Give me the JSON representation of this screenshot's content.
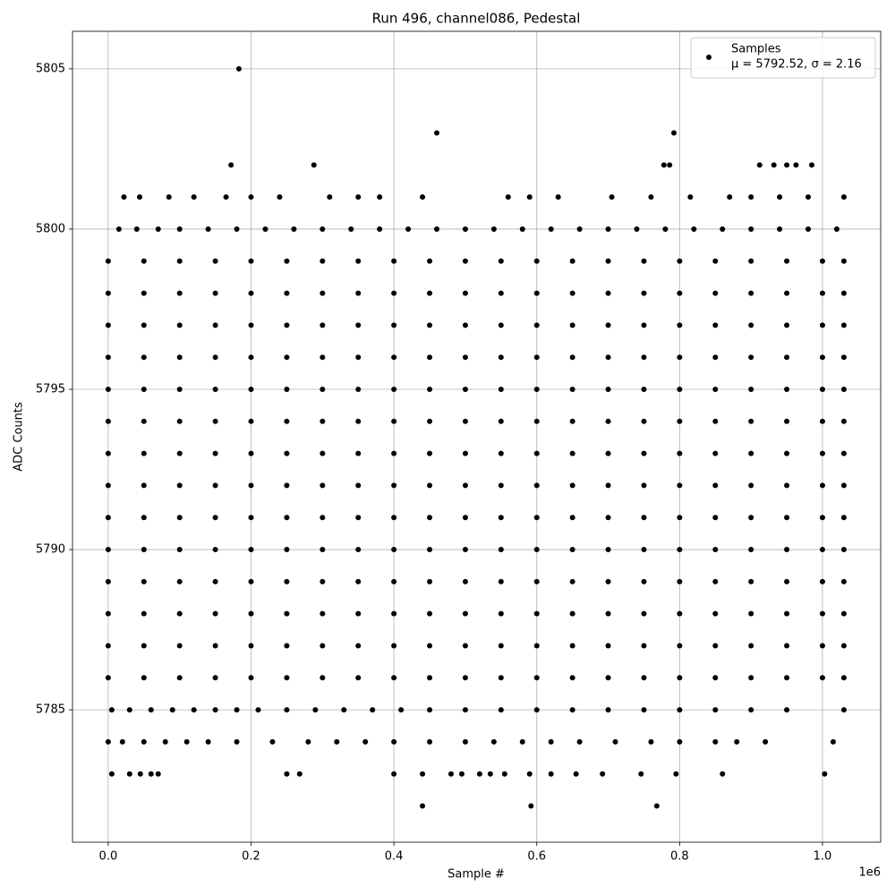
{
  "chart_data": {
    "type": "scatter",
    "title": "Run 496, channel086, Pedestal",
    "x_label": "Sample #",
    "y_label": "ADC Counts",
    "x_offset_label": "1e6",
    "legend_note": "μ = 5792.52, σ = 2.16",
    "legend_position": "upper right",
    "grid": true,
    "xlim": [
      -50000,
      1081500
    ],
    "ylim": [
      5780.87,
      5806.17
    ],
    "xticks": [
      {
        "value": 0,
        "label": "0.0"
      },
      {
        "value": 200000,
        "label": "0.2"
      },
      {
        "value": 400000,
        "label": "0.4"
      },
      {
        "value": 600000,
        "label": "0.6"
      },
      {
        "value": 800000,
        "label": "0.8"
      },
      {
        "value": 1000000,
        "label": "1.0"
      }
    ],
    "yticks": [
      5785,
      5790,
      5795,
      5800,
      5805
    ],
    "series": [
      {
        "name": "Samples",
        "color": "#000000",
        "x": [
          0,
          50000,
          100000,
          150000,
          200000,
          250000,
          300000,
          350000,
          400000,
          450000,
          500000,
          550000,
          600000,
          650000,
          700000,
          750000,
          800000,
          850000,
          900000,
          950000,
          1000000,
          1030000,
          0,
          50000,
          100000,
          150000,
          200000,
          250000,
          300000,
          350000,
          400000,
          450000,
          500000,
          550000,
          600000,
          650000,
          700000,
          750000,
          800000,
          850000,
          900000,
          950000,
          1000000,
          1030000,
          0,
          50000,
          100000,
          150000,
          200000,
          250000,
          300000,
          350000,
          400000,
          450000,
          500000,
          550000,
          600000,
          650000,
          700000,
          750000,
          800000,
          850000,
          900000,
          950000,
          1000000,
          1030000,
          0,
          50000,
          100000,
          150000,
          200000,
          250000,
          300000,
          350000,
          400000,
          450000,
          500000,
          550000,
          600000,
          650000,
          700000,
          750000,
          800000,
          850000,
          900000,
          950000,
          1000000,
          1030000,
          0,
          50000,
          100000,
          150000,
          200000,
          250000,
          300000,
          350000,
          400000,
          450000,
          500000,
          550000,
          600000,
          650000,
          700000,
          750000,
          800000,
          850000,
          900000,
          950000,
          1000000,
          1030000,
          0,
          50000,
          100000,
          150000,
          200000,
          250000,
          300000,
          350000,
          400000,
          450000,
          500000,
          550000,
          600000,
          650000,
          700000,
          750000,
          800000,
          850000,
          900000,
          950000,
          1000000,
          1030000,
          0,
          50000,
          100000,
          150000,
          200000,
          250000,
          300000,
          350000,
          400000,
          450000,
          500000,
          550000,
          600000,
          650000,
          700000,
          750000,
          800000,
          850000,
          900000,
          950000,
          1000000,
          1030000,
          0,
          50000,
          100000,
          150000,
          200000,
          250000,
          300000,
          350000,
          400000,
          450000,
          500000,
          550000,
          600000,
          650000,
          700000,
          750000,
          800000,
          850000,
          900000,
          950000,
          1000000,
          1030000,
          0,
          50000,
          100000,
          150000,
          200000,
          250000,
          300000,
          350000,
          400000,
          450000,
          500000,
          550000,
          600000,
          650000,
          700000,
          750000,
          800000,
          850000,
          900000,
          950000,
          1000000,
          1030000,
          0,
          50000,
          100000,
          150000,
          200000,
          250000,
          300000,
          350000,
          400000,
          450000,
          500000,
          550000,
          600000,
          650000,
          700000,
          750000,
          800000,
          850000,
          900000,
          950000,
          1000000,
          1030000,
          0,
          50000,
          100000,
          150000,
          200000,
          250000,
          300000,
          350000,
          400000,
          450000,
          500000,
          550000,
          600000,
          650000,
          700000,
          750000,
          800000,
          850000,
          900000,
          950000,
          1000000,
          1030000,
          0,
          50000,
          100000,
          150000,
          200000,
          250000,
          300000,
          350000,
          400000,
          450000,
          500000,
          550000,
          600000,
          650000,
          700000,
          750000,
          800000,
          850000,
          900000,
          950000,
          1000000,
          1030000,
          0,
          50000,
          100000,
          150000,
          200000,
          250000,
          300000,
          350000,
          400000,
          450000,
          500000,
          550000,
          600000,
          650000,
          700000,
          750000,
          800000,
          850000,
          900000,
          950000,
          1000000,
          1030000,
          0,
          50000,
          100000,
          150000,
          200000,
          250000,
          300000,
          350000,
          400000,
          450000,
          500000,
          550000,
          600000,
          650000,
          700000,
          750000,
          800000,
          850000,
          900000,
          950000,
          1000000,
          1030000,
          5000,
          30000,
          60000,
          90000,
          120000,
          150000,
          180000,
          210000,
          250000,
          290000,
          330000,
          370000,
          410000,
          450000,
          500000,
          550000,
          600000,
          650000,
          700000,
          750000,
          800000,
          850000,
          900000,
          950000,
          1030000,
          0,
          20000,
          50000,
          80000,
          110000,
          140000,
          180000,
          230000,
          280000,
          320000,
          360000,
          400000,
          450000,
          500000,
          540000,
          580000,
          620000,
          660000,
          710000,
          760000,
          800000,
          850000,
          880000,
          920000,
          1015000,
          15000,
          40000,
          70000,
          100000,
          140000,
          180000,
          220000,
          260000,
          300000,
          340000,
          380000,
          420000,
          460000,
          500000,
          540000,
          580000,
          620000,
          660000,
          700000,
          740000,
          780000,
          820000,
          860000,
          900000,
          940000,
          980000,
          1020000,
          22000,
          44000,
          85000,
          120000,
          165000,
          200000,
          240000,
          310000,
          350000,
          380000,
          440000,
          560000,
          590000,
          630000,
          705000,
          760000,
          815000,
          870000,
          900000,
          940000,
          980000,
          1030000,
          172000,
          288000,
          778000,
          786000,
          912000,
          932000,
          950000,
          963000,
          985000,
          460000,
          792000,
          183000,
          5000,
          30000,
          45000,
          60000,
          70000,
          250000,
          268000,
          400000,
          440000,
          480000,
          495000,
          520000,
          535000,
          555000,
          590000,
          620000,
          655000,
          692000,
          746000,
          795000,
          860000,
          1003000,
          440000,
          592000,
          768000
        ],
        "values": [
          5799,
          5799,
          5799,
          5799,
          5799,
          5799,
          5799,
          5799,
          5799,
          5799,
          5799,
          5799,
          5799,
          5799,
          5799,
          5799,
          5799,
          5799,
          5799,
          5799,
          5799,
          5799,
          5798,
          5798,
          5798,
          5798,
          5798,
          5798,
          5798,
          5798,
          5798,
          5798,
          5798,
          5798,
          5798,
          5798,
          5798,
          5798,
          5798,
          5798,
          5798,
          5798,
          5798,
          5798,
          5797,
          5797,
          5797,
          5797,
          5797,
          5797,
          5797,
          5797,
          5797,
          5797,
          5797,
          5797,
          5797,
          5797,
          5797,
          5797,
          5797,
          5797,
          5797,
          5797,
          5797,
          5797,
          5796,
          5796,
          5796,
          5796,
          5796,
          5796,
          5796,
          5796,
          5796,
          5796,
          5796,
          5796,
          5796,
          5796,
          5796,
          5796,
          5796,
          5796,
          5796,
          5796,
          5796,
          5796,
          5795,
          5795,
          5795,
          5795,
          5795,
          5795,
          5795,
          5795,
          5795,
          5795,
          5795,
          5795,
          5795,
          5795,
          5795,
          5795,
          5795,
          5795,
          5795,
          5795,
          5795,
          5795,
          5794,
          5794,
          5794,
          5794,
          5794,
          5794,
          5794,
          5794,
          5794,
          5794,
          5794,
          5794,
          5794,
          5794,
          5794,
          5794,
          5794,
          5794,
          5794,
          5794,
          5794,
          5794,
          5793,
          5793,
          5793,
          5793,
          5793,
          5793,
          5793,
          5793,
          5793,
          5793,
          5793,
          5793,
          5793,
          5793,
          5793,
          5793,
          5793,
          5793,
          5793,
          5793,
          5793,
          5793,
          5792,
          5792,
          5792,
          5792,
          5792,
          5792,
          5792,
          5792,
          5792,
          5792,
          5792,
          5792,
          5792,
          5792,
          5792,
          5792,
          5792,
          5792,
          5792,
          5792,
          5792,
          5792,
          5791,
          5791,
          5791,
          5791,
          5791,
          5791,
          5791,
          5791,
          5791,
          5791,
          5791,
          5791,
          5791,
          5791,
          5791,
          5791,
          5791,
          5791,
          5791,
          5791,
          5791,
          5791,
          5790,
          5790,
          5790,
          5790,
          5790,
          5790,
          5790,
          5790,
          5790,
          5790,
          5790,
          5790,
          5790,
          5790,
          5790,
          5790,
          5790,
          5790,
          5790,
          5790,
          5790,
          5790,
          5789,
          5789,
          5789,
          5789,
          5789,
          5789,
          5789,
          5789,
          5789,
          5789,
          5789,
          5789,
          5789,
          5789,
          5789,
          5789,
          5789,
          5789,
          5789,
          5789,
          5789,
          5789,
          5788,
          5788,
          5788,
          5788,
          5788,
          5788,
          5788,
          5788,
          5788,
          5788,
          5788,
          5788,
          5788,
          5788,
          5788,
          5788,
          5788,
          5788,
          5788,
          5788,
          5788,
          5788,
          5787,
          5787,
          5787,
          5787,
          5787,
          5787,
          5787,
          5787,
          5787,
          5787,
          5787,
          5787,
          5787,
          5787,
          5787,
          5787,
          5787,
          5787,
          5787,
          5787,
          5787,
          5787,
          5786,
          5786,
          5786,
          5786,
          5786,
          5786,
          5786,
          5786,
          5786,
          5786,
          5786,
          5786,
          5786,
          5786,
          5786,
          5786,
          5786,
          5786,
          5786,
          5786,
          5786,
          5786,
          5785,
          5785,
          5785,
          5785,
          5785,
          5785,
          5785,
          5785,
          5785,
          5785,
          5785,
          5785,
          5785,
          5785,
          5785,
          5785,
          5785,
          5785,
          5785,
          5785,
          5785,
          5785,
          5785,
          5785,
          5785,
          5784,
          5784,
          5784,
          5784,
          5784,
          5784,
          5784,
          5784,
          5784,
          5784,
          5784,
          5784,
          5784,
          5784,
          5784,
          5784,
          5784,
          5784,
          5784,
          5784,
          5784,
          5784,
          5784,
          5784,
          5784,
          5800,
          5800,
          5800,
          5800,
          5800,
          5800,
          5800,
          5800,
          5800,
          5800,
          5800,
          5800,
          5800,
          5800,
          5800,
          5800,
          5800,
          5800,
          5800,
          5800,
          5800,
          5800,
          5800,
          5800,
          5800,
          5800,
          5800,
          5801,
          5801,
          5801,
          5801,
          5801,
          5801,
          5801,
          5801,
          5801,
          5801,
          5801,
          5801,
          5801,
          5801,
          5801,
          5801,
          5801,
          5801,
          5801,
          5801,
          5801,
          5801,
          5802,
          5802,
          5802,
          5802,
          5802,
          5802,
          5802,
          5802,
          5802,
          5803,
          5803,
          5805,
          5783,
          5783,
          5783,
          5783,
          5783,
          5783,
          5783,
          5783,
          5783,
          5783,
          5783,
          5783,
          5783,
          5783,
          5783,
          5783,
          5783,
          5783,
          5783,
          5783,
          5783,
          5783,
          5782,
          5782,
          5782
        ]
      }
    ]
  }
}
